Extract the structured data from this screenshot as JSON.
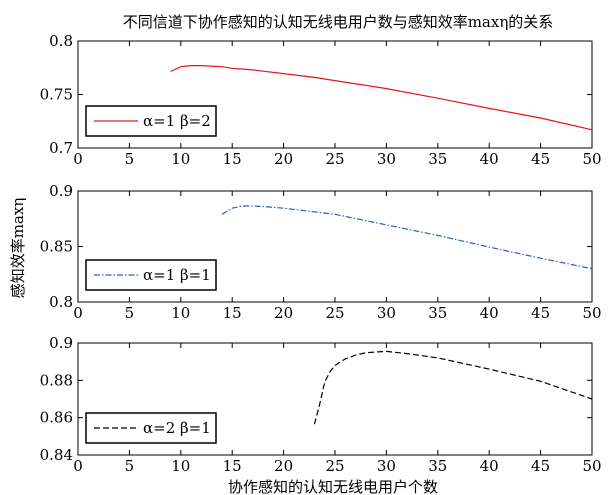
{
  "figure": {
    "title": "不同信道下协作感知的认知无线电用户数与感知效率maxη的关系",
    "xlabel": "协作感知的认知无线电用户个数",
    "ylabel": "感知效率maxη"
  },
  "chart_data": [
    {
      "type": "line",
      "xlim": [
        0,
        50
      ],
      "ylim": [
        0.7,
        0.8
      ],
      "xticks": [
        0,
        5,
        10,
        15,
        20,
        25,
        30,
        35,
        40,
        45,
        50
      ],
      "yticks": [
        0.7,
        0.75,
        0.8
      ],
      "legend_position": "bottom-left",
      "series": [
        {
          "name": "α=1 β=2",
          "color": "#e8141c",
          "dash": "solid",
          "x": [
            9,
            10,
            11,
            12,
            13,
            14,
            15,
            17,
            20,
            23,
            25,
            30,
            35,
            40,
            45,
            50
          ],
          "y": [
            0.7715,
            0.776,
            0.777,
            0.777,
            0.7765,
            0.776,
            0.7745,
            0.773,
            0.7695,
            0.766,
            0.763,
            0.7555,
            0.7465,
            0.737,
            0.728,
            0.717
          ]
        }
      ]
    },
    {
      "type": "line",
      "xlim": [
        0,
        50
      ],
      "ylim": [
        0.8,
        0.9
      ],
      "xticks": [
        0,
        5,
        10,
        15,
        20,
        25,
        30,
        35,
        40,
        45,
        50
      ],
      "yticks": [
        0.8,
        0.85,
        0.9
      ],
      "legend_position": "bottom-left",
      "series": [
        {
          "name": "α=1 β=1",
          "color": "#2d5fbd",
          "dash": "dashdot",
          "x": [
            14,
            15,
            16,
            17,
            18,
            20,
            25,
            30,
            35,
            40,
            45,
            50
          ],
          "y": [
            0.879,
            0.8845,
            0.8865,
            0.8865,
            0.886,
            0.8845,
            0.879,
            0.8695,
            0.86,
            0.8495,
            0.8395,
            0.83
          ]
        }
      ]
    },
    {
      "type": "line",
      "xlim": [
        0,
        50
      ],
      "ylim": [
        0.84,
        0.9
      ],
      "xticks": [
        0,
        5,
        10,
        15,
        20,
        25,
        30,
        35,
        40,
        45,
        50
      ],
      "yticks": [
        0.84,
        0.86,
        0.88,
        0.9
      ],
      "legend_position": "bottom-left",
      "series": [
        {
          "name": "α=2 β=1",
          "color": "#000000",
          "dash": "dashed",
          "x": [
            23,
            23.5,
            24,
            24.5,
            25,
            26,
            27,
            28,
            29,
            30,
            32,
            35,
            40,
            45,
            50
          ],
          "y": [
            0.8565,
            0.867,
            0.879,
            0.8845,
            0.888,
            0.8915,
            0.8935,
            0.8948,
            0.8952,
            0.8955,
            0.8943,
            0.892,
            0.886,
            0.8795,
            0.87
          ]
        }
      ]
    }
  ]
}
